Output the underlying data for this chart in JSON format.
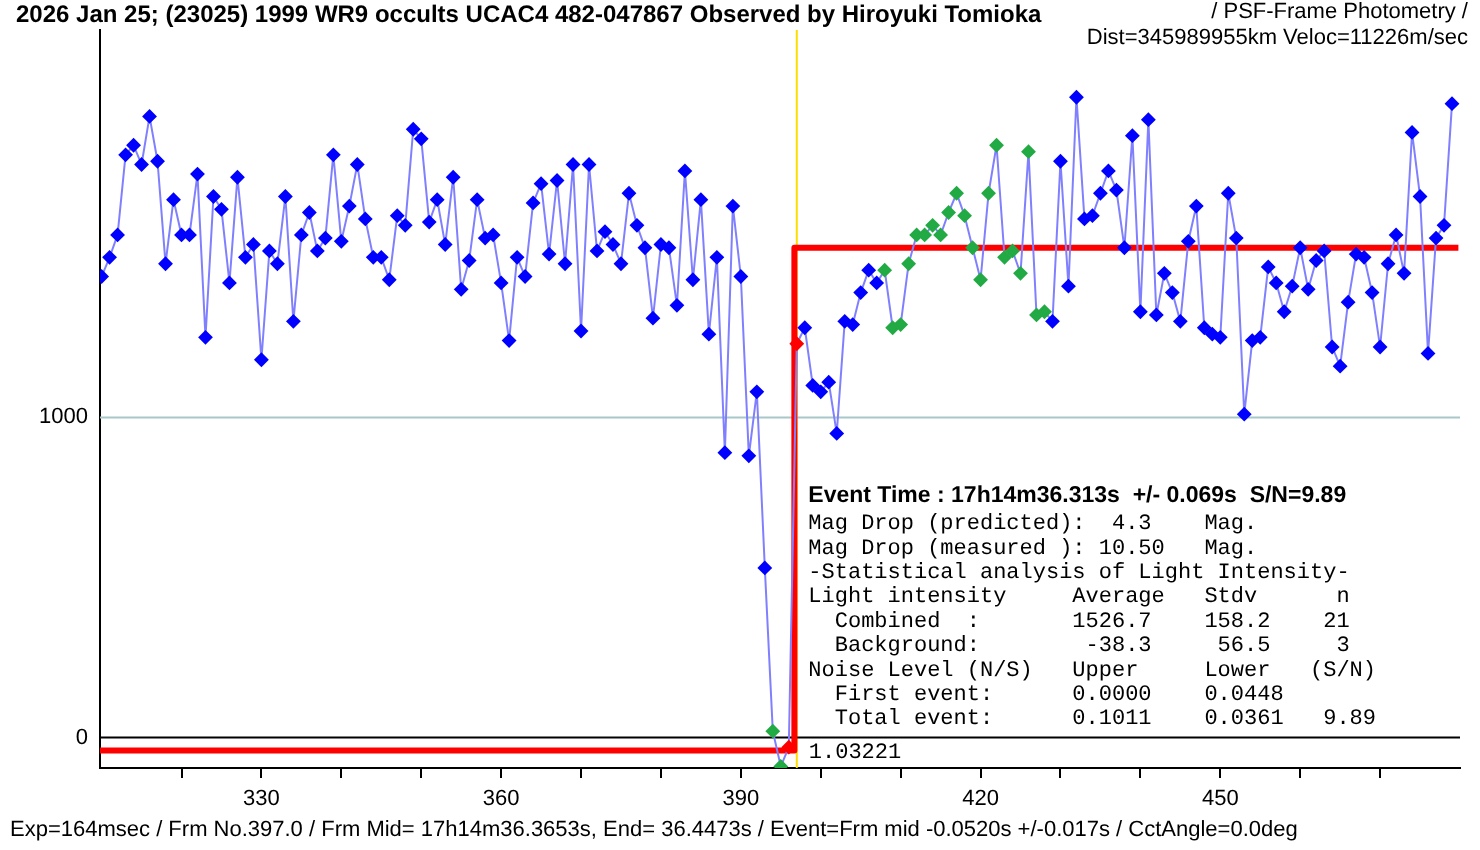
{
  "chart_data": {
    "type": "line",
    "title": "2026 Jan 25; (23025) 1999 WR9 occults UCAC4 482-047867 Observed by Hiroyuki Tomioka",
    "subtitle": "/ PSF-Frame Photometry / Dist=345989955km Veloc=11226m/sec",
    "x": [
      310,
      311,
      312,
      313,
      314,
      315,
      316,
      317,
      318,
      319,
      320,
      321,
      322,
      323,
      324,
      325,
      326,
      327,
      328,
      329,
      330,
      331,
      332,
      333,
      334,
      335,
      336,
      337,
      338,
      339,
      340,
      341,
      342,
      343,
      344,
      345,
      346,
      347,
      348,
      349,
      350,
      351,
      352,
      353,
      354,
      355,
      356,
      357,
      358,
      359,
      360,
      361,
      362,
      363,
      364,
      365,
      366,
      367,
      368,
      369,
      370,
      371,
      372,
      373,
      374,
      375,
      376,
      377,
      378,
      379,
      380,
      381,
      382,
      383,
      384,
      385,
      386,
      387,
      388,
      389,
      390,
      391,
      392,
      393,
      394,
      395,
      396,
      397,
      398,
      399,
      400,
      401,
      402,
      403,
      404,
      405,
      406,
      407,
      408,
      409,
      410,
      411,
      412,
      413,
      414,
      415,
      416,
      417,
      418,
      419,
      420,
      421,
      422,
      423,
      424,
      425,
      426,
      427,
      428,
      429,
      430,
      431,
      432,
      433,
      434,
      435,
      436,
      437,
      438,
      439,
      440,
      441,
      442,
      443,
      444,
      445,
      446,
      447,
      448,
      449,
      450,
      451,
      452,
      453,
      454,
      455,
      456,
      457,
      458,
      459,
      460,
      461,
      462,
      463,
      464,
      465,
      466,
      467,
      468,
      469,
      470,
      471,
      472,
      473,
      474,
      475,
      476,
      477,
      478,
      479
    ],
    "series": [
      {
        "color": "#8080ff",
        "marker": "diamond",
        "line_style": "solid",
        "colors": [
          "#0000ff",
          "#0000ff",
          "#0000ff",
          "#0000ff",
          "#0000ff",
          "#0000ff",
          "#0000ff",
          "#0000ff",
          "#0000ff",
          "#0000ff",
          "#0000ff",
          "#0000ff",
          "#0000ff",
          "#0000ff",
          "#0000ff",
          "#0000ff",
          "#0000ff",
          "#0000ff",
          "#0000ff",
          "#0000ff",
          "#0000ff",
          "#0000ff",
          "#0000ff",
          "#0000ff",
          "#0000ff",
          "#0000ff",
          "#0000ff",
          "#0000ff",
          "#0000ff",
          "#0000ff",
          "#0000ff",
          "#0000ff",
          "#0000ff",
          "#0000ff",
          "#0000ff",
          "#0000ff",
          "#0000ff",
          "#0000ff",
          "#0000ff",
          "#0000ff",
          "#0000ff",
          "#0000ff",
          "#0000ff",
          "#0000ff",
          "#0000ff",
          "#0000ff",
          "#0000ff",
          "#0000ff",
          "#0000ff",
          "#0000ff",
          "#0000ff",
          "#0000ff",
          "#0000ff",
          "#0000ff",
          "#0000ff",
          "#0000ff",
          "#0000ff",
          "#0000ff",
          "#0000ff",
          "#0000ff",
          "#0000ff",
          "#0000ff",
          "#0000ff",
          "#0000ff",
          "#0000ff",
          "#0000ff",
          "#0000ff",
          "#0000ff",
          "#0000ff",
          "#0000ff",
          "#0000ff",
          "#0000ff",
          "#0000ff",
          "#0000ff",
          "#0000ff",
          "#0000ff",
          "#0000ff",
          "#0000ff",
          "#0000ff",
          "#0000ff",
          "#0000ff",
          "#0000ff",
          "#0000ff",
          "#0000ff",
          "#22aa44",
          "#22aa44",
          "#ff0000",
          "#ff0000",
          "#0000ff",
          "#0000ff",
          "#0000ff",
          "#0000ff",
          "#0000ff",
          "#0000ff",
          "#0000ff",
          "#0000ff",
          "#0000ff",
          "#0000ff",
          "#22aa44",
          "#22aa44",
          "#22aa44",
          "#22aa44",
          "#22aa44",
          "#22aa44",
          "#22aa44",
          "#22aa44",
          "#22aa44",
          "#22aa44",
          "#22aa44",
          "#22aa44",
          "#22aa44",
          "#22aa44",
          "#22aa44",
          "#22aa44",
          "#22aa44",
          "#22aa44",
          "#22aa44",
          "#22aa44",
          "#22aa44",
          "#0000ff",
          "#0000ff",
          "#0000ff",
          "#0000ff",
          "#0000ff",
          "#0000ff",
          "#0000ff",
          "#0000ff",
          "#0000ff",
          "#0000ff",
          "#0000ff",
          "#0000ff",
          "#0000ff",
          "#0000ff",
          "#0000ff",
          "#0000ff",
          "#0000ff",
          "#0000ff",
          "#0000ff",
          "#0000ff",
          "#0000ff",
          "#0000ff",
          "#0000ff",
          "#0000ff",
          "#0000ff",
          "#0000ff",
          "#0000ff",
          "#0000ff",
          "#0000ff",
          "#0000ff",
          "#0000ff",
          "#0000ff",
          "#0000ff",
          "#0000ff",
          "#0000ff",
          "#0000ff",
          "#0000ff",
          "#0000ff",
          "#0000ff",
          "#0000ff",
          "#0000ff",
          "#0000ff",
          "#0000ff",
          "#0000ff",
          "#0000ff",
          "#0000ff",
          "#0000ff",
          "#0000ff",
          "#0000ff",
          "#0000ff",
          "#0000ff"
        ],
        "values": [
          1440,
          1500,
          1570,
          1820,
          1850,
          1790,
          1940,
          1800,
          1480,
          1680,
          1570,
          1570,
          1760,
          1250,
          1690,
          1650,
          1420,
          1750,
          1500,
          1540,
          1180,
          1520,
          1480,
          1690,
          1300,
          1570,
          1640,
          1520,
          1560,
          1820,
          1550,
          1660,
          1790,
          1620,
          1500,
          1500,
          1430,
          1630,
          1600,
          1900,
          1870,
          1610,
          1680,
          1540,
          1750,
          1400,
          1490,
          1680,
          1560,
          1570,
          1420,
          1240,
          1500,
          1440,
          1670,
          1730,
          1510,
          1740,
          1480,
          1790,
          1270,
          1790,
          1520,
          1580,
          1540,
          1480,
          1700,
          1600,
          1530,
          1310,
          1540,
          1530,
          1350,
          1770,
          1430,
          1680,
          1260,
          1500,
          890,
          1660,
          1440,
          880,
          1080,
          530,
          20,
          -90,
          -30,
          1230,
          1280,
          1100,
          1080,
          1110,
          950,
          1300,
          1290,
          1390,
          1460,
          1420,
          1460,
          1280,
          1290,
          1480,
          1570,
          1570,
          1600,
          1570,
          1640,
          1700,
          1630,
          1530,
          1430,
          1700,
          1850,
          1500,
          1520,
          1450,
          1830,
          1320,
          1330,
          1300,
          1800,
          1410,
          2000,
          1620,
          1630,
          1700,
          1770,
          1710,
          1530,
          1880,
          1330,
          1930,
          1320,
          1450,
          1390,
          1300,
          1550,
          1660,
          1280,
          1260,
          1250,
          1700,
          1560,
          1010,
          1240,
          1250,
          1470,
          1420,
          1330,
          1410,
          1530,
          1400,
          1490,
          1520,
          1220,
          1160,
          1360,
          1510,
          1500,
          1390,
          1220,
          1480,
          1570,
          1450,
          1890,
          1690,
          1200,
          1560,
          1600,
          1980
        ]
      },
      {
        "color": "#ff0000",
        "marker": "none",
        "line_style": "solid",
        "x": [
          309.8,
          396.7,
          396.7,
          479.8
        ],
        "values": [
          -40,
          -40,
          1530,
          1530
        ]
      }
    ],
    "xlim": [
      309.8,
      480
    ],
    "xticks": [
      {
        "value": 320,
        "label": null
      },
      330,
      {
        "value": 340,
        "label": null
      },
      {
        "value": 350,
        "label": null
      },
      360,
      {
        "value": 370,
        "label": null
      },
      {
        "value": 380,
        "label": null
      },
      390,
      {
        "value": 400,
        "label": null
      },
      {
        "value": 410,
        "label": null
      },
      420,
      {
        "value": 430,
        "label": null
      },
      {
        "value": 440,
        "label": null
      },
      450,
      {
        "value": 460,
        "label": null
      },
      {
        "value": 470,
        "label": null
      }
    ],
    "ylim": [
      -95,
      2210
    ],
    "yticks": [
      0,
      1000
    ],
    "legend": false,
    "ref_lines": [
      {
        "axis": "x",
        "value": 397,
        "color": "#ffdd00"
      },
      {
        "axis": "y",
        "value": 1000,
        "color": "#a8c8c8"
      },
      {
        "axis": "y",
        "value": 0,
        "color": "#000000"
      }
    ],
    "annotations": [
      "Event Time : 17h14m36.313s  +/- 0.069s  S/N=9.89",
      "Mag Drop (predicted):  4.3    Mag.",
      "Mag Drop (measured ): 10.50   Mag.",
      "-Statistical analysis of Light Intensity-",
      "Light intensity     Average   Stdv      n",
      "  Combined  :       1526.7    158.2    21",
      "  Background:        -38.3     56.5     3",
      "Noise Level (N/S)   Upper     Lower   (S/N)",
      "  First event:      0.0000    0.0448",
      "  Total event:      0.1011    0.0361   9.89",
      {
        "text": "1.03221",
        "x": 397,
        "y": 0
      },
      "Exp=164msec / Frm No.397.0 / Frm Mid= 17h14m36.3653s, End= 36.4473s / Event=Frm mid -0.0520s +/-0.017s / CctAngle=0.0deg"
    ]
  }
}
